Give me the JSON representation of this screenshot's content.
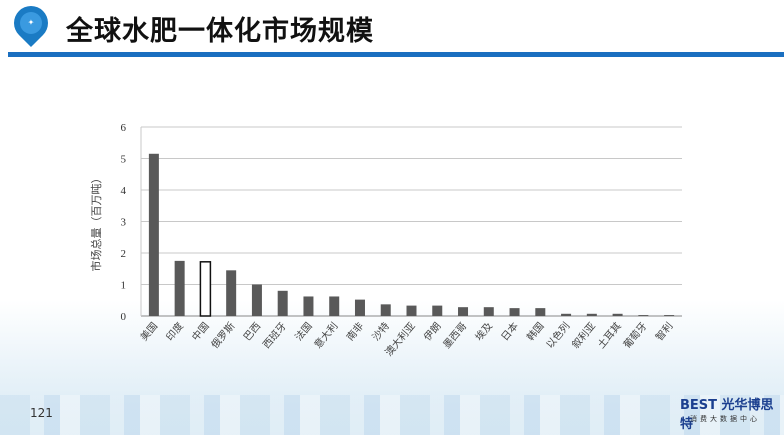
{
  "header": {
    "title": "全球水肥一体化市场规模",
    "logo": "farm-pin-logo"
  },
  "footer": {
    "page_number": "121",
    "brand": "BEST 光华博思特",
    "brand_sub": "消费大数据中心"
  },
  "colors": {
    "bar": "#595959",
    "highlight_bar": "#ffffff",
    "rule": "#1a6fc0"
  },
  "chart_data": {
    "type": "bar",
    "title": "",
    "xlabel": "",
    "ylabel": "市场总量（百万吨）",
    "ylim": [
      0,
      6
    ],
    "yticks": [
      "0",
      "1",
      "2",
      "3",
      "4",
      "5",
      "6"
    ],
    "grid": true,
    "categories": [
      "美国",
      "印度",
      "中国",
      "俄罗斯",
      "巴西",
      "西班牙",
      "法国",
      "意大利",
      "南非",
      "沙特",
      "澳大利亚",
      "伊朗",
      "墨西哥",
      "埃及",
      "日本",
      "韩国",
      "以色列",
      "叙利亚",
      "土耳其",
      "葡萄牙",
      "智利"
    ],
    "values": [
      5.15,
      1.75,
      1.72,
      1.45,
      1.0,
      0.8,
      0.62,
      0.62,
      0.52,
      0.37,
      0.33,
      0.33,
      0.28,
      0.28,
      0.25,
      0.25,
      0.07,
      0.07,
      0.07,
      0.03,
      0.03
    ],
    "highlight": "中国"
  }
}
